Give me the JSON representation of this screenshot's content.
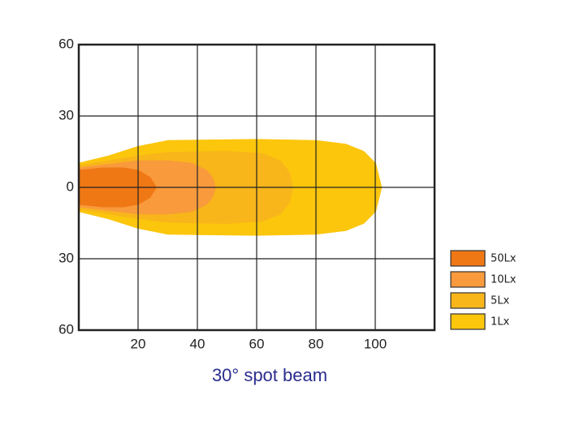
{
  "chart_data": {
    "type": "beam",
    "title": "30°  spot beam",
    "xlim": [
      0,
      120
    ],
    "xticks": [
      20,
      40,
      60,
      80,
      100
    ],
    "ylim": [
      -60,
      60
    ],
    "yticks": [
      {
        "value": -60,
        "label": "60"
      },
      {
        "value": -30,
        "label": "30"
      },
      0,
      30,
      60
    ],
    "grid": true,
    "series": [
      {
        "name": "50Lx",
        "color": "#f07814",
        "x": [
          0,
          8,
          15,
          20,
          24,
          26
        ],
        "values": [
          7,
          8,
          8,
          7,
          4,
          0
        ]
      },
      {
        "name": "10Lx",
        "color": "#f99a3c",
        "x": [
          0,
          10,
          20,
          30,
          38,
          43,
          45,
          46
        ],
        "values": [
          8,
          9.5,
          11,
          11,
          10,
          7,
          4,
          0
        ]
      },
      {
        "name": "5Lx",
        "color": "#f8b61a",
        "x": [
          0,
          10,
          20,
          30,
          50,
          62,
          68,
          71,
          72
        ],
        "values": [
          9,
          11,
          13,
          14.5,
          15,
          14,
          11,
          6,
          0
        ]
      },
      {
        "name": "1Lx",
        "color": "#fcc60c",
        "x": [
          0,
          10,
          20,
          30,
          60,
          80,
          90,
          96,
          100,
          102
        ],
        "values": [
          10,
          13,
          17,
          19.5,
          20,
          19.5,
          18,
          15,
          10,
          0
        ]
      }
    ]
  }
}
